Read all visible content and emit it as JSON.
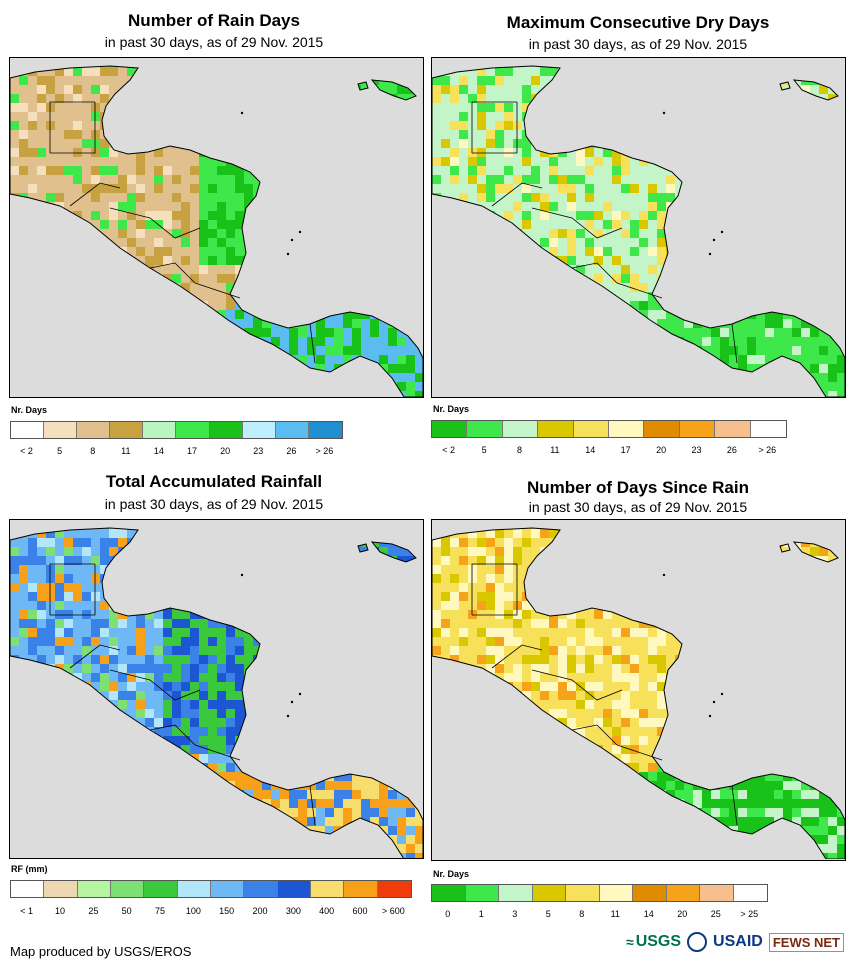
{
  "panels": [
    {
      "title": "Number of Rain Days",
      "subtitle": "in past 30 days, as of 29 Nov. 2015",
      "legend_title": "Nr. Days",
      "legend_colors": [
        "#ffffff",
        "#f5dfbd",
        "#e0c08c",
        "#c8a240",
        "#b8f5c0",
        "#3ee84a",
        "#19c219",
        "#bfeeff",
        "#5bbcf0",
        "#1f8fd0"
      ],
      "legend_ticks": [
        "< 2",
        "5",
        "8",
        "11",
        "14",
        "17",
        "20",
        "23",
        "26",
        "> 26"
      ]
    },
    {
      "title": "Maximum Consecutive Dry Days",
      "subtitle": "in past 30 days, as of 29 Nov. 2015",
      "legend_title": "Nr. Days",
      "legend_colors": [
        "#19c219",
        "#3ee84a",
        "#c4f5c8",
        "#d9c800",
        "#f7e05a",
        "#fff8bf",
        "#e08c00",
        "#f7a31a",
        "#f7bf8c",
        "#ffffff"
      ],
      "legend_ticks": [
        "< 2",
        "5",
        "8",
        "11",
        "14",
        "17",
        "20",
        "23",
        "26",
        "> 26"
      ]
    },
    {
      "title": "Total Accumulated Rainfall",
      "subtitle": "in past 30 days, as of 29 Nov. 2015",
      "legend_title": "RF (mm)",
      "legend_colors": [
        "#ffffff",
        "#efd7b2",
        "#b6f5a0",
        "#7ee072",
        "#3cc83c",
        "#b4e6fa",
        "#6eb9f5",
        "#3a82e8",
        "#1c56d2",
        "#f7dc6e",
        "#f7a019",
        "#f03c0a"
      ],
      "legend_ticks": [
        "< 1",
        "10",
        "25",
        "50",
        "75",
        "100",
        "150",
        "200",
        "300",
        "400",
        "600",
        "> 600"
      ]
    },
    {
      "title": "Number of Days Since Rain",
      "subtitle": "in past 30 days, as of 29 Nov. 2015",
      "legend_title": "Nr. Days",
      "legend_colors": [
        "#19c219",
        "#3ee84a",
        "#c4f5c8",
        "#d9c800",
        "#f7e05a",
        "#fff8bf",
        "#e08c00",
        "#f7a31a",
        "#f7bf8c",
        "#ffffff"
      ],
      "legend_ticks": [
        "0",
        "1",
        "3",
        "5",
        "8",
        "11",
        "14",
        "20",
        "25",
        "> 25"
      ]
    }
  ],
  "credit": "Map produced by USGS/EROS",
  "logos": {
    "usgs": "USGS",
    "usaid": "USAID",
    "fews": "FEWS NET"
  },
  "map_palettes": {
    "rain_days": [
      "#e0c08c",
      "#c8a240",
      "#f5dfbd",
      "#3ee84a",
      "#19c219",
      "#b8f5c0",
      "#5bbcf0",
      "#bfeeff"
    ],
    "dry_days": [
      "#c4f5c8",
      "#3ee84a",
      "#19c219",
      "#f7e05a",
      "#d9c800",
      "#fff8bf"
    ],
    "rainfall": [
      "#6eb9f5",
      "#3a82e8",
      "#1c56d2",
      "#3cc83c",
      "#7ee072",
      "#f7dc6e",
      "#f7a019",
      "#b4e6fa"
    ],
    "days_since": [
      "#f7e05a",
      "#fff8bf",
      "#d9c800",
      "#3ee84a",
      "#19c219",
      "#c4f5c8",
      "#f7a31a"
    ]
  }
}
